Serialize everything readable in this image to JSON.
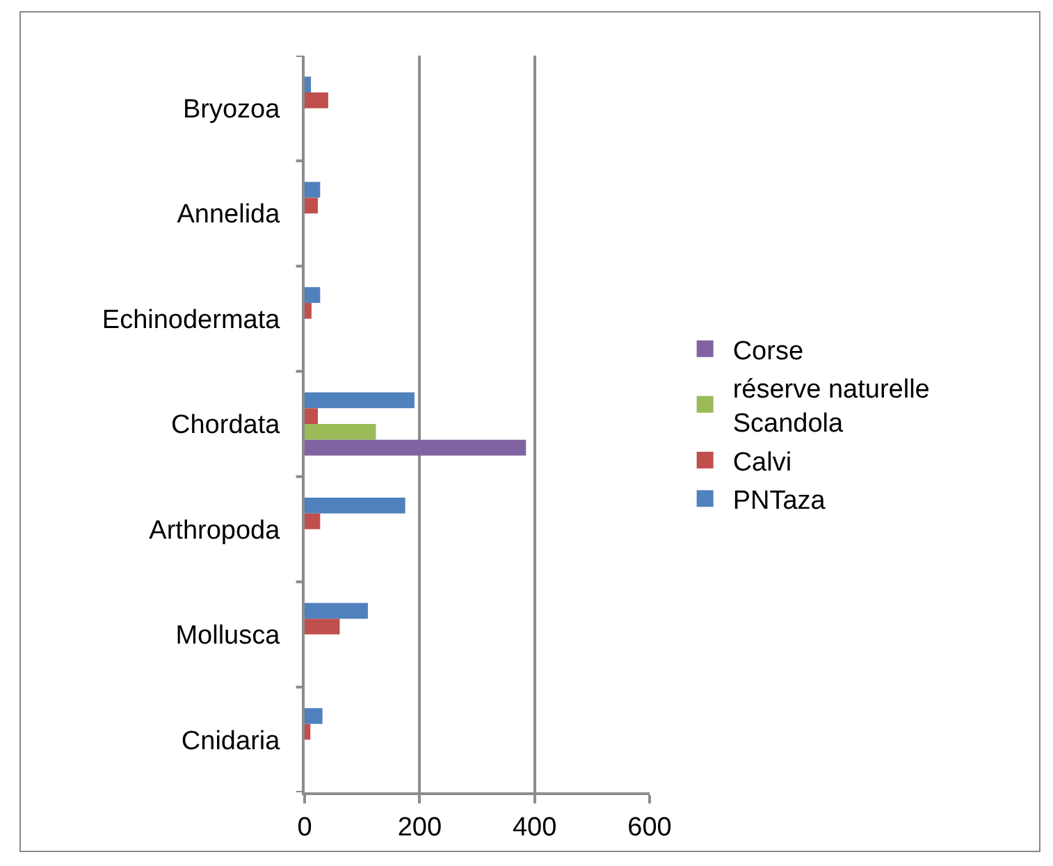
{
  "chart_data": {
    "type": "bar",
    "orientation": "horizontal",
    "categories": [
      "Bryozoa",
      "Annelida",
      "Echinodermata",
      "Chordata",
      "Arthropoda",
      "Mollusca",
      "Cnidaria"
    ],
    "series": [
      {
        "name": "PNTaza",
        "color": "#4f81bd",
        "values": [
          11,
          27,
          27,
          191,
          175,
          110,
          31
        ]
      },
      {
        "name": "Calvi",
        "color": "#c0504d",
        "values": [
          41,
          23,
          12,
          23,
          27,
          61,
          10
        ]
      },
      {
        "name": "réserve naturelle Scandola",
        "color": "#9bbb59",
        "values": [
          null,
          null,
          null,
          124,
          null,
          null,
          null
        ]
      },
      {
        "name": "Corse",
        "color": "#8064a2",
        "values": [
          null,
          null,
          null,
          385,
          null,
          null,
          null
        ]
      }
    ],
    "xlim": [
      0,
      600
    ],
    "xticks": [
      0,
      200,
      400,
      600
    ],
    "grid": "x",
    "legend": "right"
  }
}
